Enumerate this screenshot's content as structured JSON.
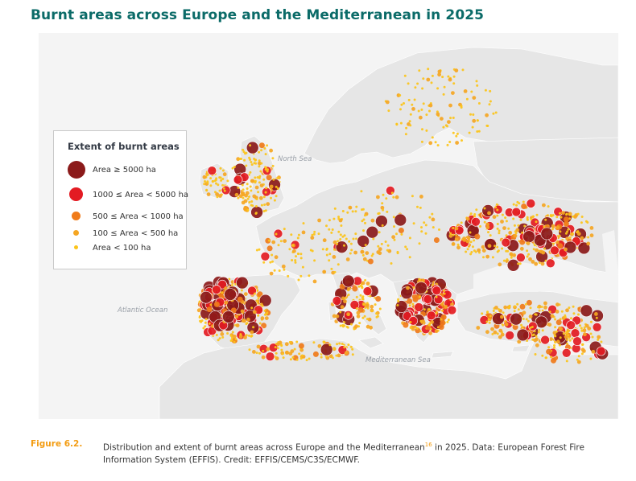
{
  "title": "Burnt areas across Europe and the Mediterranean in 2025",
  "legend": {
    "title": "Extent of burnt areas",
    "items": [
      {
        "label": "Area ≥ 5000 ha",
        "color": "#8b1a1a"
      },
      {
        "label": "1000 ≤ Area < 5000 ha",
        "color": "#e31b23"
      },
      {
        "label": "500 ≤ Area < 1000 ha",
        "color": "#f07b1a"
      },
      {
        "label": "100 ≤ Area < 500 ha",
        "color": "#f5a623"
      },
      {
        "label": "Area < 100 ha",
        "color": "#fcc419"
      }
    ]
  },
  "map_labels": {
    "north_sea": "North Sea",
    "atlantic": "Atlantic Ocean",
    "mediterranean": "Mediterranean Sea"
  },
  "caption": {
    "figure_number": "Figure 6.2.",
    "text_before": "Distribution and extent of burnt areas across Europe and the Mediterranean",
    "footnote": "16",
    "text_after": " in 2025. Data: European Forest Fire Information System (EFFIS). Credit: EFFIS/CEMS/C3S/ECMWF."
  },
  "colors": {
    "sea": "#ffffff",
    "land": "#e9e9e9",
    "title": "#0b6b68",
    "figure_label": "#f39c12"
  }
}
